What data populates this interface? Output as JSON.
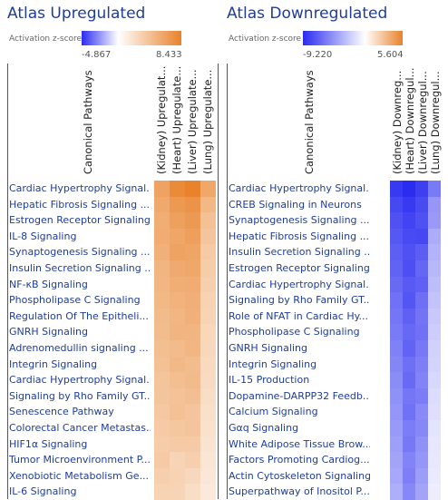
{
  "chart_data": [
    {
      "type": "heatmap",
      "title": "Atlas Upregulated",
      "legend": {
        "label": "Activation z-score",
        "min": -4.867,
        "max": 8.433,
        "min_label": "-4.867",
        "max_label": "8.433"
      },
      "row_header": "Canonical Pathways",
      "columns": [
        "(Kidney) Upregulat...",
        "(Heart) Upregulate...",
        "(Liver) Upregulate...",
        "(Lung) Upregulate..."
      ],
      "rows": [
        "Cardiac Hypertrophy Signal...",
        "Hepatic Fibrosis Signaling ...",
        "Estrogen Receptor Signaling",
        "IL-8 Signaling",
        "Synaptogenesis Signaling ...",
        "Insulin Secretion Signaling ...",
        "NF-κB Signaling",
        "Phospholipase C Signaling",
        "Regulation Of The Epitheli...",
        "GNRH Signaling",
        "Adrenomedullin signaling ...",
        "Integrin Signaling",
        "Cardiac Hypertrophy Signal...",
        "Signaling by Rho Family GT...",
        "Senescence Pathway",
        "Colorectal Cancer Metastas...",
        "HIF1α Signaling",
        "Tumor Microenvironment P...",
        "Xenobiotic Metabolism Ge...",
        "IL-6 Signaling"
      ],
      "values": [
        [
          6.2,
          7.8,
          8.4,
          5.9
        ],
        [
          5.8,
          6.9,
          7.2,
          4.8
        ],
        [
          5.5,
          6.4,
          6.8,
          4.2
        ],
        [
          5.6,
          6.0,
          6.5,
          3.9
        ],
        [
          5.3,
          6.2,
          6.1,
          3.6
        ],
        [
          5.0,
          5.7,
          5.9,
          3.4
        ],
        [
          4.9,
          5.5,
          5.6,
          3.2
        ],
        [
          4.8,
          5.2,
          5.4,
          3.0
        ],
        [
          4.6,
          4.9,
          5.3,
          2.9
        ],
        [
          4.5,
          5.0,
          5.0,
          2.7
        ],
        [
          4.4,
          4.6,
          4.9,
          2.6
        ],
        [
          4.2,
          4.8,
          4.5,
          2.5
        ],
        [
          4.0,
          4.4,
          4.6,
          2.4
        ],
        [
          3.9,
          4.1,
          4.3,
          2.2
        ],
        [
          3.7,
          4.2,
          3.9,
          2.1
        ],
        [
          3.6,
          3.8,
          3.9,
          2.0
        ],
        [
          3.4,
          3.6,
          3.5,
          1.9
        ],
        [
          3.6,
          2.9,
          3.2,
          1.7
        ],
        [
          3.2,
          3.0,
          2.6,
          1.6
        ],
        [
          3.0,
          2.9,
          2.3,
          1.4
        ]
      ]
    },
    {
      "type": "heatmap",
      "title": "Atlas Downregulated",
      "legend": {
        "label": "Activation z-score",
        "min": -9.22,
        "max": 5.604,
        "min_label": "-9.220",
        "max_label": "5.604"
      },
      "row_header": "Canonical Pathways",
      "columns": [
        "(Kidney) Downreg...",
        "(Heart) Downregul...",
        "(Liver) Downregul...",
        "(Lung) Downregul..."
      ],
      "rows": [
        "Cardiac Hypertrophy Signal...",
        "CREB Signaling in Neurons",
        "Synaptogenesis Signaling ...",
        "Hepatic Fibrosis Signaling ...",
        "Insulin Secretion Signaling ...",
        "Estrogen Receptor Signaling",
        "Cardiac Hypertrophy Signal...",
        "Signaling by Rho Family GT...",
        "Role of NFAT in Cardiac Hy...",
        "Phospholipase C Signaling",
        "GNRH Signaling",
        "Integrin Signaling",
        "IL-15 Production",
        "Dopamine-DARPP32 Feedb...",
        "Calcium Signaling",
        "Gαq Signaling",
        "White Adipose Tissue Brow...",
        "Factors Promoting Cardiog...",
        "Actin Cytoskeleton Signaling",
        "Superpathway of Inositol P..."
      ],
      "values": [
        [
          -8.6,
          -9.2,
          -8.4,
          -5.8
        ],
        [
          -8.0,
          -8.6,
          -7.9,
          -4.6
        ],
        [
          -7.6,
          -8.2,
          -7.6,
          -4.4
        ],
        [
          -7.3,
          -7.9,
          -8.0,
          -3.6
        ],
        [
          -7.0,
          -7.6,
          -7.1,
          -3.3
        ],
        [
          -6.8,
          -7.7,
          -6.7,
          -3.1
        ],
        [
          -6.5,
          -7.2,
          -6.9,
          -2.9
        ],
        [
          -6.2,
          -7.4,
          -6.3,
          -2.6
        ],
        [
          -6.0,
          -6.9,
          -6.1,
          -2.4
        ],
        [
          -5.8,
          -6.6,
          -6.2,
          -2.2
        ],
        [
          -5.5,
          -6.8,
          -5.9,
          -2.0
        ],
        [
          -5.3,
          -6.3,
          -5.6,
          -1.9
        ],
        [
          -5.0,
          -6.5,
          -5.4,
          -1.7
        ],
        [
          -4.8,
          -6.0,
          -5.7,
          -1.5
        ],
        [
          -4.6,
          -6.2,
          -5.1,
          -1.4
        ],
        [
          -4.4,
          -5.7,
          -5.2,
          -1.2
        ],
        [
          -4.2,
          -5.9,
          -4.8,
          -1.1
        ],
        [
          -4.0,
          -5.4,
          -4.6,
          -1.0
        ],
        [
          -3.8,
          -5.6,
          -4.3,
          -0.9
        ],
        [
          -3.5,
          -5.2,
          -4.0,
          -0.8
        ]
      ]
    }
  ],
  "colors": {
    "negative": "#2a2cf0",
    "zero": "#ffffff",
    "positive": "#e8822a"
  }
}
